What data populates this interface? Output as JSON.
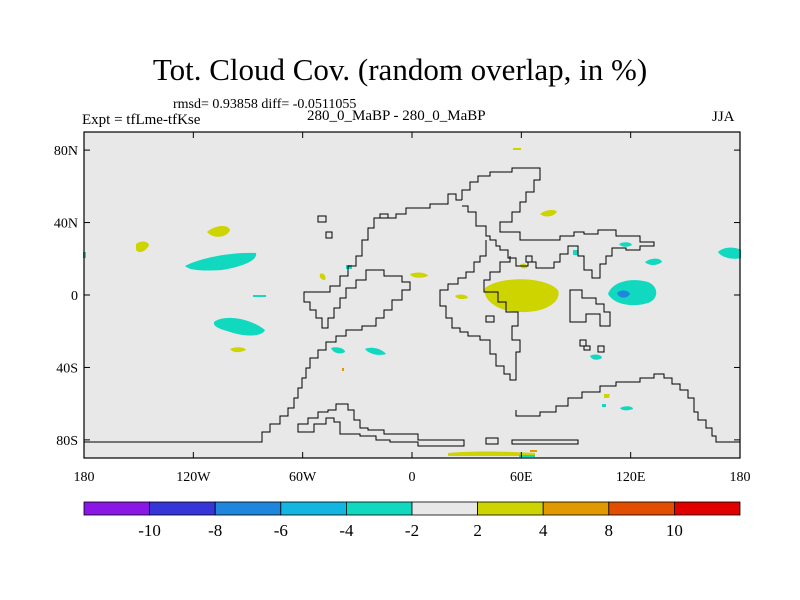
{
  "title": "Tot. Cloud Cov. (random overlap, in %)",
  "stats_line": "rmsd= 0.93858 diff= -0.0511055",
  "experiment": "Expt = tfLme-tfKse",
  "subtitle": "280_0_MaBP - 280_0_MaBP",
  "season": "JJA",
  "lat_labels": [
    {
      "label": "80N",
      "value": 80
    },
    {
      "label": "40N",
      "value": 40
    },
    {
      "label": "0",
      "value": 0
    },
    {
      "label": "40S",
      "value": -40
    },
    {
      "label": "80S",
      "value": -80
    }
  ],
  "lon_labels": [
    {
      "label": "180",
      "value": -180
    },
    {
      "label": "120W",
      "value": -120
    },
    {
      "label": "60W",
      "value": -60
    },
    {
      "label": "0",
      "value": 0
    },
    {
      "label": "60E",
      "value": 60
    },
    {
      "label": "120E",
      "value": 120
    },
    {
      "label": "180",
      "value": 180
    }
  ],
  "colorbar": {
    "colors": [
      "#8a17e6",
      "#3535d8",
      "#1e86dc",
      "#12b6e0",
      "#10d9c0",
      "#e8e8e8",
      "#cdd400",
      "#e09a00",
      "#e04e00",
      "#e00000"
    ],
    "labels": [
      "-10",
      "-8",
      "-6",
      "-4",
      "-2",
      "2",
      "4",
      "8",
      "10"
    ]
  },
  "colors": {
    "background_field": "#e8e8e8",
    "coast": "#000000"
  }
}
